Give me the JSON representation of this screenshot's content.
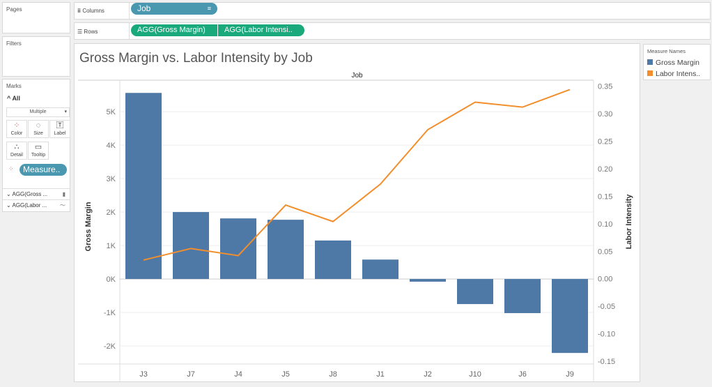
{
  "panels": {
    "pages": "Pages",
    "filters": "Filters",
    "marks": "Marks"
  },
  "marks": {
    "all": "All",
    "mark_type": "Multiple",
    "buttons": [
      "Color",
      "Size",
      "Label",
      "Detail",
      "Tooltip"
    ],
    "pill": "Measure..",
    "measures": [
      "AGG(Gross ...",
      "AGG(Labor ..."
    ]
  },
  "shelves": {
    "columns_label": "Columns",
    "rows_label": "Rows",
    "columns_pills": [
      "Job"
    ],
    "rows_pills": [
      "AGG(Gross Margin)",
      "AGG(Labor Intensi.."
    ]
  },
  "legend": {
    "title": "Measure Names",
    "items": [
      {
        "label": "Gross Margin",
        "color": "#4e79a7"
      },
      {
        "label": "Labor Intens..",
        "color": "#f28e2b"
      }
    ]
  },
  "chart_data": {
    "type": "bar+line",
    "title": "Gross Margin vs. Labor Intensity by Job",
    "xlabel": "Job",
    "ylabel": "Gross Margin",
    "y2label": "Labor Intensity",
    "categories": [
      "J3",
      "J7",
      "J4",
      "J5",
      "J8",
      "J1",
      "J2",
      "J10",
      "J6",
      "J9"
    ],
    "series": [
      {
        "name": "Gross Margin",
        "type": "bar",
        "axis": "left",
        "color": "#4e79a7",
        "values": [
          5560,
          2000,
          1810,
          1770,
          1150,
          580,
          -80,
          -750,
          -1020,
          -2210
        ]
      },
      {
        "name": "Labor Intensity",
        "type": "line",
        "axis": "right",
        "color": "#f28e2b",
        "values": [
          0.034,
          0.055,
          0.042,
          0.134,
          0.104,
          0.172,
          0.271,
          0.321,
          0.312,
          0.344
        ]
      }
    ],
    "ylim": [
      -2540,
      5940
    ],
    "yticks": [
      -2000,
      -1000,
      0,
      1000,
      2000,
      3000,
      4000,
      5000
    ],
    "ytick_labels": [
      "-2K",
      "-1K",
      "0K",
      "1K",
      "2K",
      "3K",
      "4K",
      "5K"
    ],
    "y2lim": [
      -0.155,
      0.361
    ],
    "y2ticks": [
      -0.15,
      -0.1,
      -0.05,
      0.0,
      0.05,
      0.1,
      0.15,
      0.2,
      0.25,
      0.3,
      0.35
    ],
    "y2tick_labels": [
      "-0.15",
      "-0.10",
      "-0.05",
      "0.00",
      "0.05",
      "0.10",
      "0.15",
      "0.20",
      "0.25",
      "0.30",
      "0.35"
    ],
    "grid": true
  }
}
